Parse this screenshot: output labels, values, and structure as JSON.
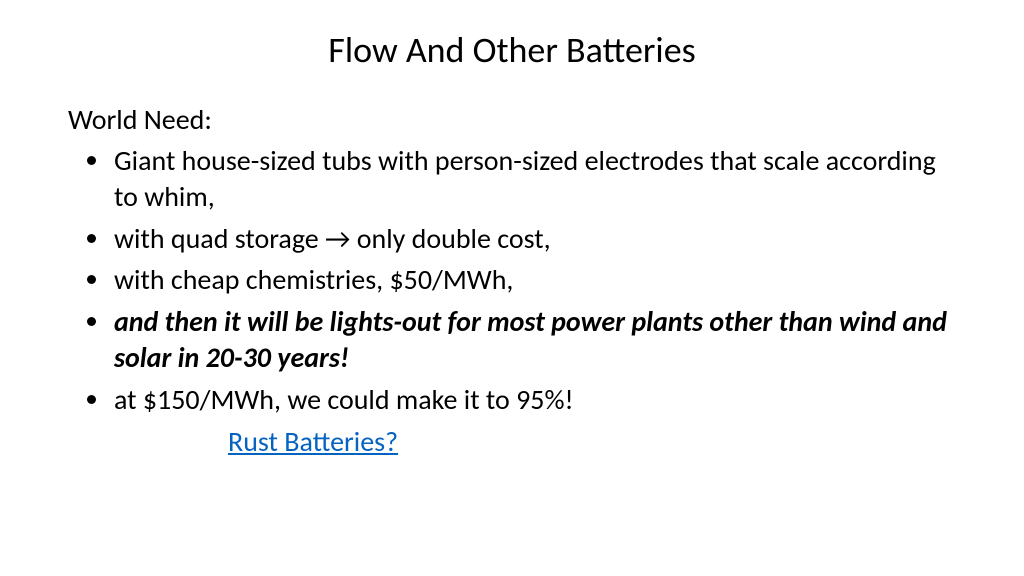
{
  "title": "Flow And Other Batteries",
  "lead": "World Need:",
  "bullets": [
    {
      "text": "Giant house-sized tubs with person-sized electrodes that scale according to whim,",
      "emph": false
    },
    {
      "text": "with quad storage → only double cost,",
      "emph": false
    },
    {
      "text": "with cheap chemistries, $50/MWh,",
      "emph": false
    },
    {
      "text": "and then it will be lights-out for most power plants other than wind and solar in 20-30 years!",
      "emph": true
    },
    {
      "text": "at $150/MWh, we could make it to 95%!",
      "emph": false
    }
  ],
  "link": "Rust Batteries?",
  "colors": {
    "text": "#000000",
    "link": "#0563c1",
    "background": "#ffffff"
  },
  "typography": {
    "title_fontsize": 36,
    "body_fontsize": 28,
    "font_family": "Calibri"
  }
}
